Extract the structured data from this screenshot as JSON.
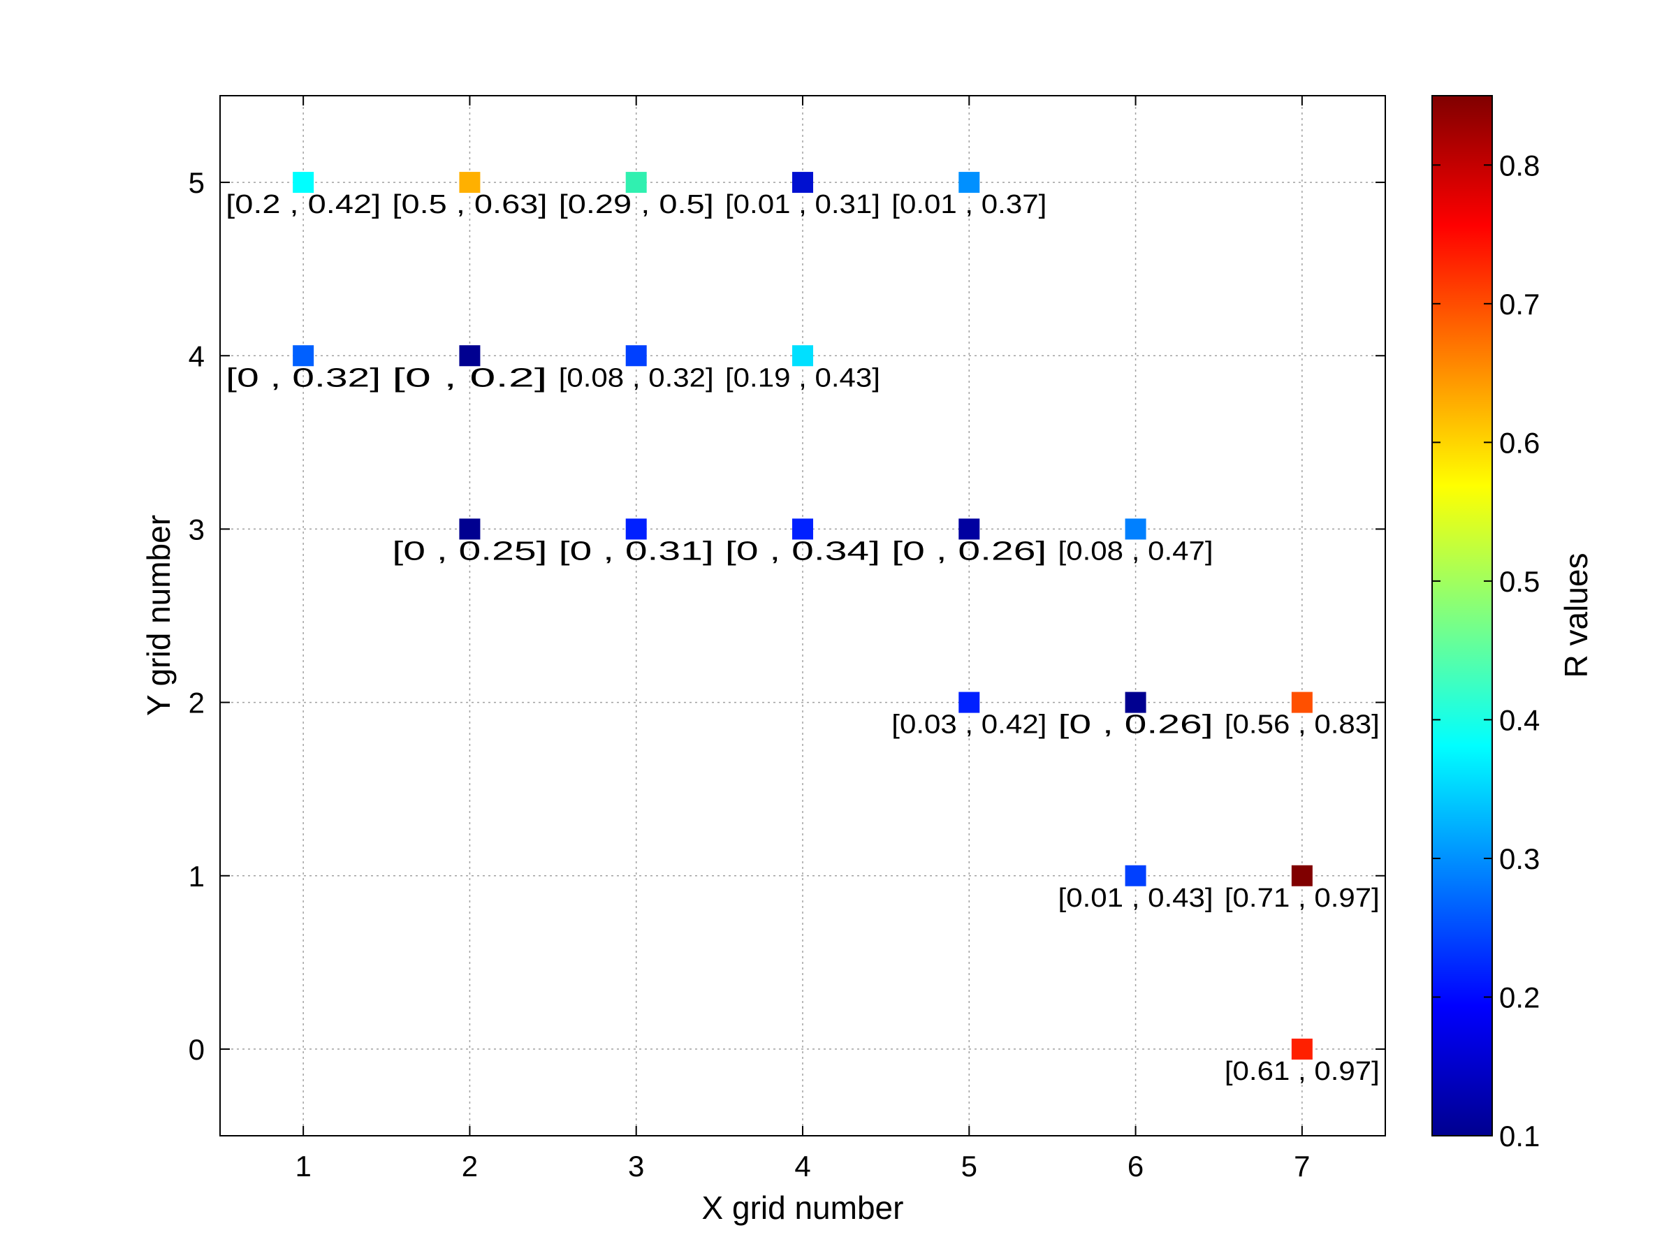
{
  "chart_data": {
    "type": "scatter",
    "xlabel": "X grid number",
    "ylabel": "Y grid number",
    "xlim": [
      0.5,
      7.5
    ],
    "ylim": [
      -0.5,
      5.5
    ],
    "xticks": [
      "1",
      "2",
      "3",
      "4",
      "5",
      "6",
      "7"
    ],
    "yticks": [
      "0",
      "1",
      "2",
      "3",
      "4",
      "5"
    ],
    "grid": true,
    "marker": "square",
    "colormap": "jet",
    "colorbar": {
      "label": "R values",
      "range": [
        0.1,
        0.85
      ],
      "ticks": [
        "0.1",
        "0.2",
        "0.3",
        "0.4",
        "0.5",
        "0.6",
        "0.7",
        "0.8"
      ],
      "placement": "right"
    },
    "points": [
      {
        "x": 1,
        "y": 5,
        "r": 0.37,
        "label": "[0.2 , 0.42]",
        "color": "#00FFFF"
      },
      {
        "x": 2,
        "y": 5,
        "r": 0.61,
        "label": "[0.5 , 0.63]",
        "color": "#FFB000"
      },
      {
        "x": 3,
        "y": 5,
        "r": 0.43,
        "label": "[0.29 , 0.5]",
        "color": "#30F0B0"
      },
      {
        "x": 4,
        "y": 5,
        "r": 0.15,
        "label": "[0.01 , 0.31]",
        "color": "#0010D0"
      },
      {
        "x": 5,
        "y": 5,
        "r": 0.29,
        "label": "[0.01 , 0.37]",
        "color": "#0090FF"
      },
      {
        "x": 1,
        "y": 4,
        "r": 0.26,
        "label": "[0 , 0.32]",
        "color": "#0060FF"
      },
      {
        "x": 2,
        "y": 4,
        "r": 0.11,
        "label": "[0 , 0.2]",
        "color": "#000090"
      },
      {
        "x": 3,
        "y": 4,
        "r": 0.23,
        "label": "[0.08 , 0.32]",
        "color": "#0040FF"
      },
      {
        "x": 4,
        "y": 4,
        "r": 0.36,
        "label": "[0.19 , 0.43]",
        "color": "#00E0FF"
      },
      {
        "x": 2,
        "y": 3,
        "r": 0.11,
        "label": "[0 , 0.25]",
        "color": "#000090"
      },
      {
        "x": 3,
        "y": 3,
        "r": 0.19,
        "label": "[0 , 0.31]",
        "color": "#0020FF"
      },
      {
        "x": 4,
        "y": 3,
        "r": 0.19,
        "label": "[0 , 0.34]",
        "color": "#0020FF"
      },
      {
        "x": 5,
        "y": 3,
        "r": 0.12,
        "label": "[0 , 0.26]",
        "color": "#0000A0"
      },
      {
        "x": 6,
        "y": 3,
        "r": 0.27,
        "label": "[0.08 , 0.47]",
        "color": "#0080FF"
      },
      {
        "x": 5,
        "y": 2,
        "r": 0.19,
        "label": "[0.03 , 0.42]",
        "color": "#0020FF"
      },
      {
        "x": 6,
        "y": 2,
        "r": 0.11,
        "label": "[0 , 0.26]",
        "color": "#000090"
      },
      {
        "x": 7,
        "y": 2,
        "r": 0.7,
        "label": "[0.56 , 0.83]",
        "color": "#FF5000"
      },
      {
        "x": 6,
        "y": 1,
        "r": 0.22,
        "label": "[0.01 , 0.43]",
        "color": "#0040FF"
      },
      {
        "x": 7,
        "y": 1,
        "r": 0.85,
        "label": "[0.71 , 0.97]",
        "color": "#800000"
      },
      {
        "x": 7,
        "y": 0,
        "r": 0.76,
        "label": "[0.61 , 0.97]",
        "color": "#FF2000"
      }
    ]
  }
}
